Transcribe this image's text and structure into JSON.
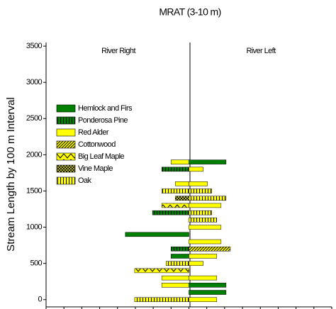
{
  "chart_data": {
    "type": "butterfly-bar",
    "title": "MRAT (3-10 m)",
    "y_label": "Stream Length by 100 m Interval",
    "annotations": [
      "River Right",
      "River Left"
    ],
    "ylim": [
      -100,
      3550
    ],
    "yticks": [
      0,
      500,
      1000,
      1500,
      2000,
      2500,
      3000,
      3500
    ],
    "xlim": [
      -200,
      200
    ],
    "xticks": [
      -200,
      -175,
      -150,
      -125,
      -100,
      -75,
      -50,
      -25,
      0,
      25,
      50,
      75,
      100,
      125,
      150,
      175,
      200
    ],
    "legend": "upper left",
    "series": [
      {
        "name": "Hemlock and Firs",
        "color": "#008000",
        "pattern": "solid",
        "y": [
          100,
          200,
          600,
          900,
          1900
        ],
        "values": [
          52,
          52,
          -25,
          -89,
          52
        ]
      },
      {
        "name": "Ponderosa Pine",
        "color": "#008000",
        "pattern": "vertical",
        "y": [
          700,
          1200,
          1800
        ],
        "values": [
          -25,
          -51,
          -38
        ]
      },
      {
        "name": "Red Alder",
        "color": "#ffff00",
        "pattern": "solid",
        "y": [
          0,
          200,
          300,
          300,
          500,
          600,
          800,
          1000,
          1300,
          1600,
          1600,
          1800,
          1900
        ],
        "values": [
          39,
          -38,
          -38,
          39,
          20,
          39,
          45,
          45,
          45,
          -19,
          26,
          20,
          -25
        ]
      },
      {
        "name": "Cottonwood",
        "color": "#ffff00",
        "pattern": "diagonal",
        "y": [
          700
        ],
        "values": [
          58
        ]
      },
      {
        "name": "Big Leaf Maple",
        "color": "#ffff00",
        "pattern": "zigzag",
        "y": [
          400,
          1300
        ],
        "values": [
          -76,
          -38
        ]
      },
      {
        "name": "Vine Maple",
        "color": "#ffff00",
        "pattern": "crosshatch",
        "y": [
          1400
        ],
        "values": [
          -19
        ]
      },
      {
        "name": "Oak",
        "color": "#ffff00",
        "pattern": "vertical",
        "y": [
          0,
          500,
          1100,
          1200,
          1400,
          1500,
          1500
        ],
        "values": [
          -76,
          -32,
          39,
          32,
          52,
          -38,
          32
        ]
      }
    ]
  }
}
